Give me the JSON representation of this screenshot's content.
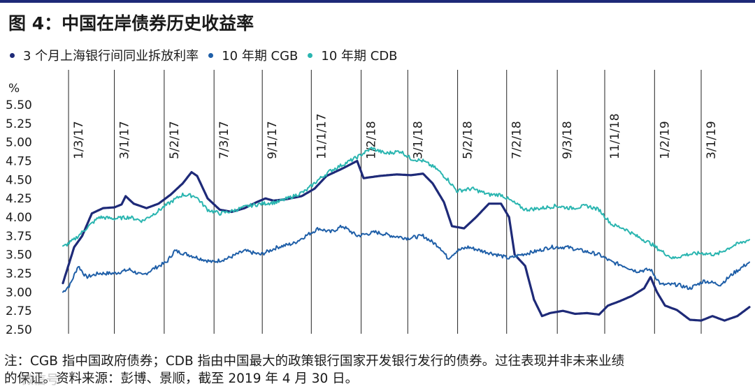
{
  "title": "图 4：中国在岸债券历史收益率",
  "legend": [
    {
      "label": "3 个月上海银行间同业拆放利率",
      "color": "#1e2a78"
    },
    {
      "label": "10 年期 CGB",
      "color": "#1f5fa8"
    },
    {
      "label": "10 年期 CDB",
      "color": "#2ab5b0"
    }
  ],
  "footnote": {
    "line1": "注：CGB 指中国政府债券；CDB 指由中国最大的政策银行国家开发银行发行的债券。过往表现并非未来业绩",
    "line2": "的保证。资料来源：彭博、景顺，截至 2019 年 4 月 30 日。"
  },
  "watermark": "微信号",
  "chart_data": {
    "type": "line",
    "title": "",
    "xlabel": "",
    "ylabel": "%",
    "ylim": [
      2.5,
      5.5
    ],
    "yticks": [
      "5.50",
      "5.25",
      "5.00",
      "4.75",
      "4.50",
      "4.25",
      "4.00",
      "3.75",
      "3.50",
      "3.25",
      "3.00",
      "2.75",
      "2.50"
    ],
    "xlim": [
      "2016-12-27",
      "2019-04-30"
    ],
    "x_ticks": [
      {
        "date": "2017-01-03",
        "label": "1/3/17"
      },
      {
        "date": "2017-03-01",
        "label": "3/1/17"
      },
      {
        "date": "2017-05-02",
        "label": "5/2/17"
      },
      {
        "date": "2017-07-03",
        "label": "7/3/17"
      },
      {
        "date": "2017-09-01",
        "label": "9/1/17"
      },
      {
        "date": "2017-11-01",
        "label": "11/1/17"
      },
      {
        "date": "2018-01-02",
        "label": "1/2/18"
      },
      {
        "date": "2018-03-01",
        "label": "3/1/18"
      },
      {
        "date": "2018-05-02",
        "label": "5/2/18"
      },
      {
        "date": "2018-07-02",
        "label": "7/2/18"
      },
      {
        "date": "2018-09-03",
        "label": "9/3/18"
      },
      {
        "date": "2018-11-01",
        "label": "11/1/18"
      },
      {
        "date": "2019-01-02",
        "label": "1/2/19"
      },
      {
        "date": "2019-03-01",
        "label": "3/1/19"
      }
    ],
    "grid": false,
    "series": [
      {
        "name": "3 个月上海银行间同业拆放利率",
        "color": "#1e2a78",
        "points": [
          [
            "2016-12-27",
            3.12
          ],
          [
            "2017-01-10",
            3.6
          ],
          [
            "2017-01-20",
            3.75
          ],
          [
            "2017-02-01",
            4.05
          ],
          [
            "2017-02-15",
            4.12
          ],
          [
            "2017-03-01",
            4.13
          ],
          [
            "2017-03-10",
            4.17
          ],
          [
            "2017-03-15",
            4.28
          ],
          [
            "2017-03-25",
            4.18
          ],
          [
            "2017-04-10",
            4.12
          ],
          [
            "2017-04-25",
            4.18
          ],
          [
            "2017-05-10",
            4.3
          ],
          [
            "2017-05-25",
            4.45
          ],
          [
            "2017-06-05",
            4.6
          ],
          [
            "2017-06-12",
            4.55
          ],
          [
            "2017-06-25",
            4.25
          ],
          [
            "2017-07-10",
            4.1
          ],
          [
            "2017-07-25",
            4.07
          ],
          [
            "2017-08-10",
            4.12
          ],
          [
            "2017-08-25",
            4.2
          ],
          [
            "2017-09-05",
            4.25
          ],
          [
            "2017-09-15",
            4.22
          ],
          [
            "2017-10-01",
            4.24
          ],
          [
            "2017-10-20",
            4.28
          ],
          [
            "2017-11-05",
            4.38
          ],
          [
            "2017-11-20",
            4.55
          ],
          [
            "2017-12-10",
            4.65
          ],
          [
            "2017-12-28",
            4.75
          ],
          [
            "2018-01-05",
            4.52
          ],
          [
            "2018-01-25",
            4.55
          ],
          [
            "2018-02-15",
            4.57
          ],
          [
            "2018-03-05",
            4.56
          ],
          [
            "2018-03-20",
            4.58
          ],
          [
            "2018-04-01",
            4.45
          ],
          [
            "2018-04-15",
            4.2
          ],
          [
            "2018-04-25",
            3.88
          ],
          [
            "2018-05-10",
            3.85
          ],
          [
            "2018-05-25",
            4.0
          ],
          [
            "2018-06-10",
            4.18
          ],
          [
            "2018-06-25",
            4.18
          ],
          [
            "2018-07-05",
            4.0
          ],
          [
            "2018-07-12",
            3.5
          ],
          [
            "2018-07-25",
            3.35
          ],
          [
            "2018-08-05",
            2.9
          ],
          [
            "2018-08-15",
            2.68
          ],
          [
            "2018-08-25",
            2.72
          ],
          [
            "2018-09-10",
            2.75
          ],
          [
            "2018-09-25",
            2.71
          ],
          [
            "2018-10-10",
            2.72
          ],
          [
            "2018-10-25",
            2.7
          ],
          [
            "2018-11-05",
            2.82
          ],
          [
            "2018-11-20",
            2.88
          ],
          [
            "2018-12-05",
            2.95
          ],
          [
            "2018-12-20",
            3.05
          ],
          [
            "2018-12-28",
            3.2
          ],
          [
            "2019-01-05",
            3.0
          ],
          [
            "2019-01-15",
            2.82
          ],
          [
            "2019-01-30",
            2.76
          ],
          [
            "2019-02-15",
            2.63
          ],
          [
            "2019-03-01",
            2.62
          ],
          [
            "2019-03-15",
            2.68
          ],
          [
            "2019-03-30",
            2.62
          ],
          [
            "2019-04-15",
            2.68
          ],
          [
            "2019-04-30",
            2.8
          ]
        ]
      },
      {
        "name": "10 年期 CGB",
        "color": "#1f5fa8",
        "points": [
          [
            "2016-12-27",
            3.0
          ],
          [
            "2017-01-05",
            3.1
          ],
          [
            "2017-01-15",
            3.35
          ],
          [
            "2017-01-25",
            3.2
          ],
          [
            "2017-02-10",
            3.25
          ],
          [
            "2017-03-01",
            3.25
          ],
          [
            "2017-03-20",
            3.3
          ],
          [
            "2017-04-05",
            3.22
          ],
          [
            "2017-04-20",
            3.32
          ],
          [
            "2017-05-05",
            3.4
          ],
          [
            "2017-05-15",
            3.55
          ],
          [
            "2017-06-01",
            3.5
          ],
          [
            "2017-06-15",
            3.45
          ],
          [
            "2017-07-01",
            3.4
          ],
          [
            "2017-07-20",
            3.45
          ],
          [
            "2017-08-10",
            3.55
          ],
          [
            "2017-08-30",
            3.5
          ],
          [
            "2017-09-20",
            3.6
          ],
          [
            "2017-10-10",
            3.65
          ],
          [
            "2017-10-25",
            3.75
          ],
          [
            "2017-11-10",
            3.85
          ],
          [
            "2017-11-25",
            3.8
          ],
          [
            "2017-12-10",
            3.88
          ],
          [
            "2017-12-28",
            3.75
          ],
          [
            "2018-01-20",
            3.8
          ],
          [
            "2018-02-10",
            3.75
          ],
          [
            "2018-03-01",
            3.72
          ],
          [
            "2018-03-20",
            3.75
          ],
          [
            "2018-04-10",
            3.6
          ],
          [
            "2018-04-20",
            3.45
          ],
          [
            "2018-05-01",
            3.55
          ],
          [
            "2018-05-15",
            3.6
          ],
          [
            "2018-06-01",
            3.55
          ],
          [
            "2018-06-20",
            3.5
          ],
          [
            "2018-07-05",
            3.45
          ],
          [
            "2018-07-20",
            3.5
          ],
          [
            "2018-08-10",
            3.55
          ],
          [
            "2018-08-25",
            3.6
          ],
          [
            "2018-09-15",
            3.6
          ],
          [
            "2018-10-05",
            3.55
          ],
          [
            "2018-10-25",
            3.5
          ],
          [
            "2018-11-10",
            3.4
          ],
          [
            "2018-11-25",
            3.35
          ],
          [
            "2018-12-10",
            3.28
          ],
          [
            "2018-12-28",
            3.3
          ],
          [
            "2019-01-10",
            3.1
          ],
          [
            "2019-01-30",
            3.1
          ],
          [
            "2019-02-15",
            3.05
          ],
          [
            "2019-03-05",
            3.15
          ],
          [
            "2019-03-25",
            3.1
          ],
          [
            "2019-04-10",
            3.25
          ],
          [
            "2019-04-30",
            3.4
          ]
        ]
      },
      {
        "name": "10 年期 CDB",
        "color": "#2ab5b0",
        "points": [
          [
            "2016-12-27",
            3.6
          ],
          [
            "2017-01-10",
            3.7
          ],
          [
            "2017-01-25",
            3.85
          ],
          [
            "2017-02-10",
            4.0
          ],
          [
            "2017-03-01",
            3.98
          ],
          [
            "2017-03-20",
            4.0
          ],
          [
            "2017-04-05",
            3.95
          ],
          [
            "2017-04-20",
            4.05
          ],
          [
            "2017-05-10",
            4.2
          ],
          [
            "2017-05-25",
            4.3
          ],
          [
            "2017-06-10",
            4.28
          ],
          [
            "2017-06-25",
            4.1
          ],
          [
            "2017-07-10",
            4.05
          ],
          [
            "2017-07-25",
            4.08
          ],
          [
            "2017-08-15",
            4.15
          ],
          [
            "2017-09-01",
            4.18
          ],
          [
            "2017-09-20",
            4.2
          ],
          [
            "2017-10-10",
            4.28
          ],
          [
            "2017-10-25",
            4.35
          ],
          [
            "2017-11-10",
            4.5
          ],
          [
            "2017-11-25",
            4.62
          ],
          [
            "2017-12-10",
            4.7
          ],
          [
            "2017-12-28",
            4.8
          ],
          [
            "2018-01-15",
            4.92
          ],
          [
            "2018-02-01",
            4.85
          ],
          [
            "2018-02-20",
            4.88
          ],
          [
            "2018-03-05",
            4.78
          ],
          [
            "2018-03-20",
            4.75
          ],
          [
            "2018-04-05",
            4.65
          ],
          [
            "2018-04-20",
            4.5
          ],
          [
            "2018-05-01",
            4.35
          ],
          [
            "2018-05-20",
            4.38
          ],
          [
            "2018-06-10",
            4.3
          ],
          [
            "2018-06-25",
            4.3
          ],
          [
            "2018-07-10",
            4.2
          ],
          [
            "2018-07-25",
            4.1
          ],
          [
            "2018-08-15",
            4.12
          ],
          [
            "2018-09-01",
            4.15
          ],
          [
            "2018-09-20",
            4.12
          ],
          [
            "2018-10-10",
            4.15
          ],
          [
            "2018-10-25",
            4.1
          ],
          [
            "2018-11-10",
            3.9
          ],
          [
            "2018-11-25",
            3.85
          ],
          [
            "2018-12-10",
            3.75
          ],
          [
            "2018-12-28",
            3.65
          ],
          [
            "2019-01-10",
            3.55
          ],
          [
            "2019-01-25",
            3.45
          ],
          [
            "2019-02-10",
            3.5
          ],
          [
            "2019-03-01",
            3.52
          ],
          [
            "2019-03-20",
            3.5
          ],
          [
            "2019-04-10",
            3.62
          ],
          [
            "2019-04-30",
            3.7
          ]
        ]
      }
    ]
  }
}
